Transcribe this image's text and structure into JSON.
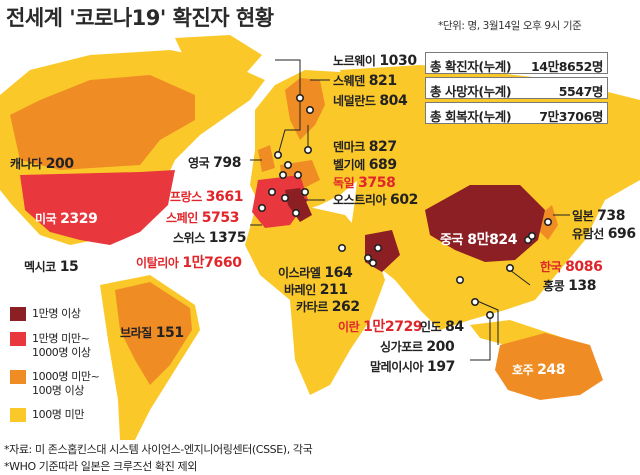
{
  "title": "전세계 '코로나19' 확진자 현황",
  "unit_note": "*단위: 명, 3월14일 오후 9시 기준",
  "colors": {
    "over_10000": "#8b1f24",
    "1000_to_10000": "#e8383d",
    "100_to_1000": "#f08c24",
    "under_100": "#fbc82a",
    "ocean": "#ffffff"
  },
  "totals": [
    {
      "label": "총 확진자(누계)",
      "value": "14만8652명"
    },
    {
      "label": "총 사망자(누계)",
      "value": "5547명"
    },
    {
      "label": "총 회복자(누계)",
      "value": "7만3706명"
    }
  ],
  "countries": {
    "canada": {
      "name": "캐나다",
      "count": "200"
    },
    "usa": {
      "name": "미국",
      "count": "2329"
    },
    "mexico": {
      "name": "멕시코",
      "count": "15"
    },
    "brazil": {
      "name": "브라질",
      "count": "151"
    },
    "norway": {
      "name": "노르웨이",
      "count": "1030"
    },
    "sweden": {
      "name": "스웨덴",
      "count": "821"
    },
    "netherlands": {
      "name": "네덜란드",
      "count": "804"
    },
    "denmark": {
      "name": "덴마크",
      "count": "827"
    },
    "belgium": {
      "name": "벨기에",
      "count": "689"
    },
    "uk": {
      "name": "영국",
      "count": "798"
    },
    "germany": {
      "name": "독일",
      "count": "3758"
    },
    "france": {
      "name": "프랑스",
      "count": "3661"
    },
    "austria": {
      "name": "오스트리아",
      "count": "602"
    },
    "spain": {
      "name": "스페인",
      "count": "5753"
    },
    "switzerland": {
      "name": "스위스",
      "count": "1375"
    },
    "italy": {
      "name": "이탈리아",
      "count": "1만7660"
    },
    "israel": {
      "name": "이스라엘",
      "count": "164"
    },
    "bahrain": {
      "name": "바레인",
      "count": "211"
    },
    "qatar": {
      "name": "카타르",
      "count": "262"
    },
    "iran": {
      "name": "이란",
      "count": "1만2729"
    },
    "india": {
      "name": "인도",
      "count": "84"
    },
    "china": {
      "name": "중국",
      "count": "8만824"
    },
    "korea": {
      "name": "한국",
      "count": "8086"
    },
    "japan": {
      "name": "일본",
      "count": "738"
    },
    "cruise": {
      "name": "유람선",
      "count": "696"
    },
    "hongkong": {
      "name": "홍콩",
      "count": "138"
    },
    "singapore": {
      "name": "싱가포르",
      "count": "200"
    },
    "malaysia": {
      "name": "말레이시아",
      "count": "197"
    },
    "australia": {
      "name": "호주",
      "count": "248"
    }
  },
  "legend": [
    {
      "label": "1만명 이상",
      "color": "#8b1f24"
    },
    {
      "label": "1만명 미만~\n1000명 이상",
      "color": "#e8383d"
    },
    {
      "label": "1000명 미만~\n100명 이상",
      "color": "#f08c24"
    },
    {
      "label": "100명 미만",
      "color": "#fbc82a"
    }
  ],
  "footnotes": [
    "*자료: 미 존스홉킨스대 시스템 사이언스-엔지니어링센터(CSSE), 각국",
    "*WHO 기준따라 일본은 크루즈선 확진 제외"
  ]
}
